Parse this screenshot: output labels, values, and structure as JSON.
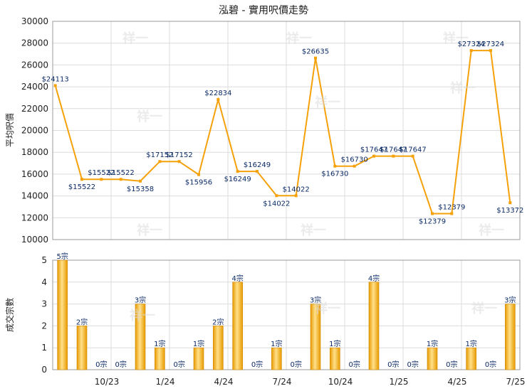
{
  "chart_data": [
    {
      "type": "line",
      "title": "泓碧 - 實用呎價走勢",
      "ylabel": "平均呎價",
      "ylim": [
        10000,
        30000
      ],
      "yticks": [
        "10000",
        "12000",
        "14000",
        "16000",
        "18000",
        "20000",
        "22000",
        "24000",
        "26000",
        "28000",
        "30000"
      ],
      "series": [
        {
          "values": [
            24113,
            15522,
            15522,
            15522,
            15358,
            17152,
            17152,
            15956,
            22834,
            16249,
            16249,
            14022,
            14022,
            26635,
            16730,
            16730,
            17647,
            17647,
            17647,
            12379,
            12379,
            27324,
            27324,
            13372
          ],
          "labels": [
            "$24113",
            "$15522",
            "$15522",
            "$15522",
            "$15358",
            "$17152",
            "$17152",
            "$15956",
            "$22834",
            "$16249",
            "$16249",
            "$14022",
            "$14022",
            "$26635",
            "$16730",
            "$16730",
            "$17647",
            "$17647",
            "$17647",
            "$12379",
            "$12379",
            "$27324",
            "$27324",
            "$13372"
          ],
          "color": "#f5a10a"
        }
      ]
    },
    {
      "type": "bar",
      "ylabel": "成交宗數",
      "ylim": [
        0,
        5
      ],
      "yticks": [
        "0",
        "1",
        "2",
        "3",
        "4",
        "5"
      ],
      "categories": [
        "10/23",
        "1/24",
        "4/24",
        "7/24",
        "10/24",
        "1/25",
        "4/25",
        "7/25"
      ],
      "values": [
        5,
        2,
        0,
        0,
        3,
        1,
        0,
        1,
        2,
        4,
        0,
        1,
        0,
        3,
        1,
        0,
        4,
        0,
        0,
        1,
        0,
        1,
        0,
        3
      ],
      "labels": [
        "5宗",
        "2宗",
        "0宗",
        "0宗",
        "3宗",
        "1宗",
        "0宗",
        "1宗",
        "2宗",
        "4宗",
        "0宗",
        "1宗",
        "0宗",
        "3宗",
        "1宗",
        "0宗",
        "4宗",
        "0宗",
        "0宗",
        "1宗",
        "0宗",
        "1宗",
        "0宗",
        "3宗"
      ],
      "color": "#f5a10a"
    }
  ],
  "watermark": "祥一"
}
